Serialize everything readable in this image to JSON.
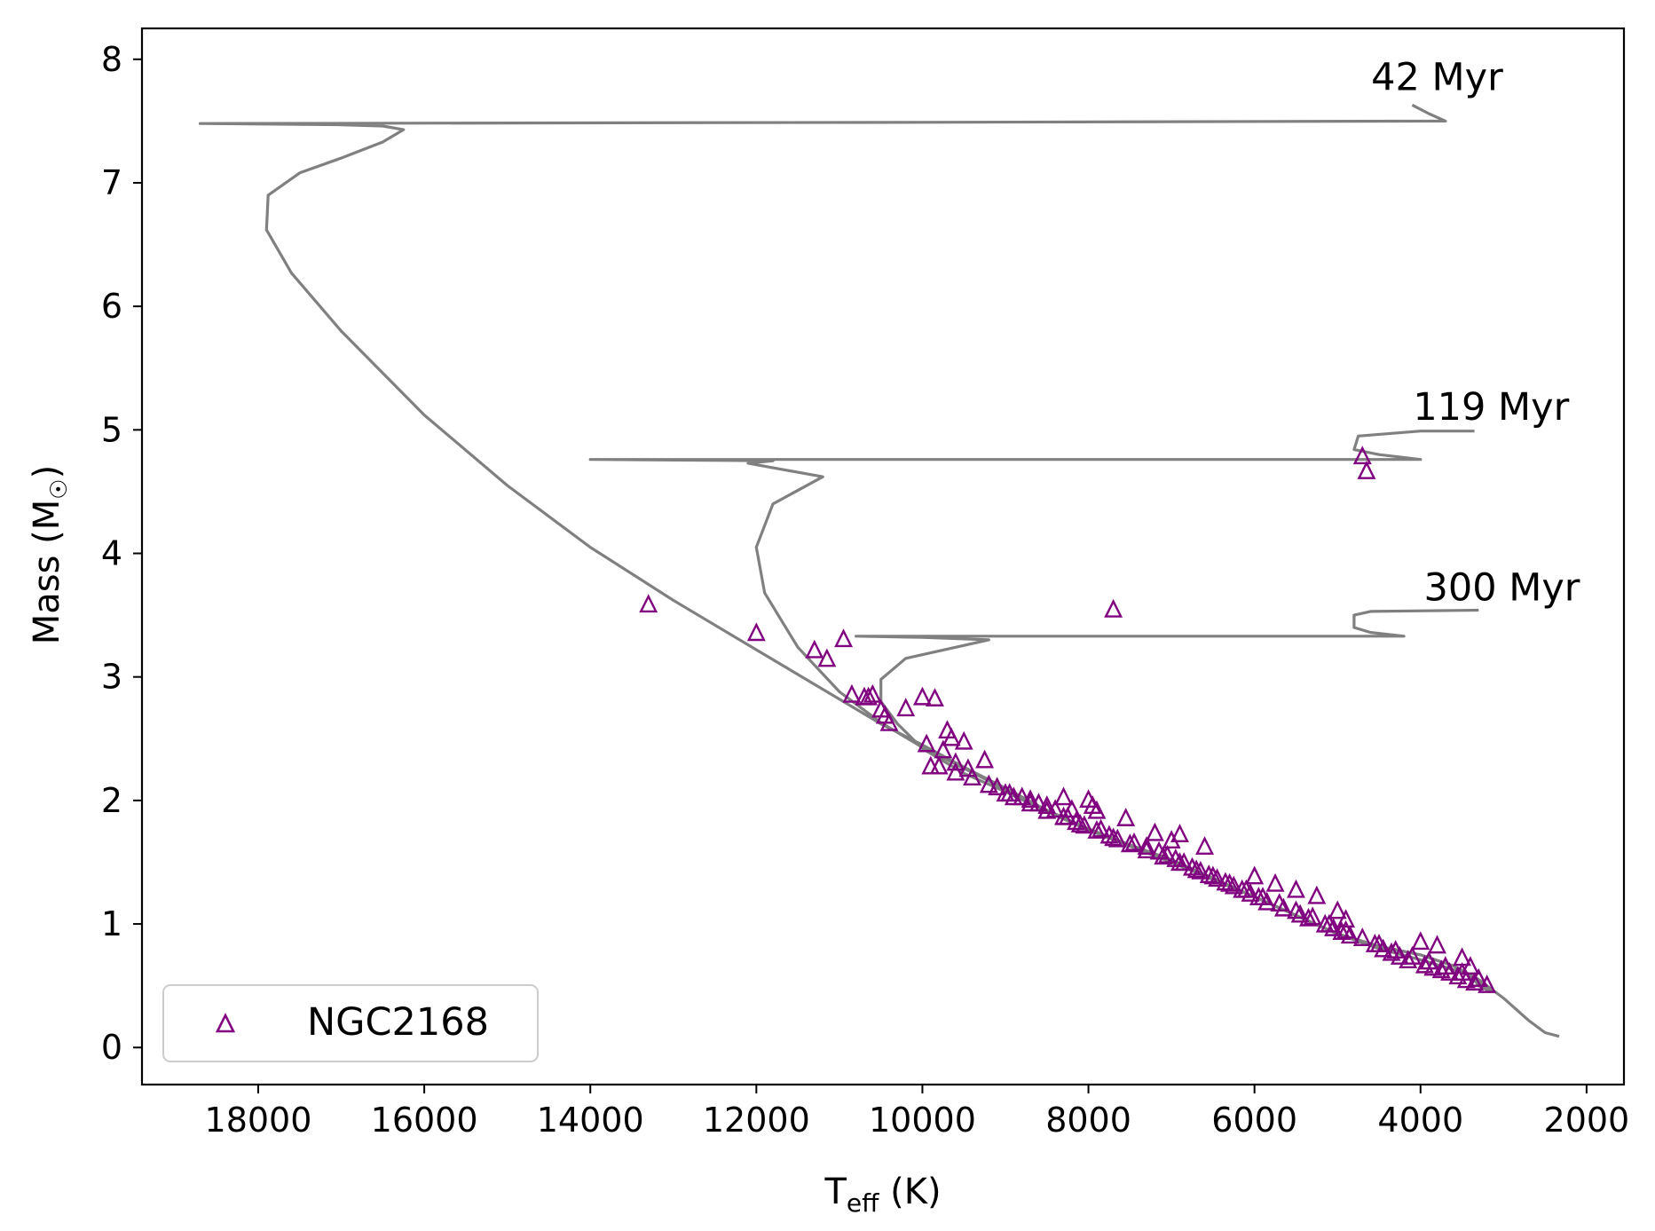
{
  "chart_data": {
    "type": "scatter",
    "title": "",
    "xlabel": {
      "main": "T",
      "sub": "eff",
      "rest": " (K)"
    },
    "ylabel": {
      "main": "Mass (M",
      "sub": "☉",
      "rest": ")"
    },
    "x_axis": {
      "range": [
        19400,
        1550
      ],
      "inverted": true,
      "ticks": [
        18000,
        16000,
        14000,
        12000,
        10000,
        8000,
        6000,
        4000,
        2000
      ],
      "tick_labels": [
        "18000",
        "16000",
        "14000",
        "12000",
        "10000",
        "8000",
        "6000",
        "4000",
        "2000"
      ]
    },
    "y_axis": {
      "range": [
        -0.3,
        8.25
      ],
      "ticks": [
        0,
        1,
        2,
        3,
        4,
        5,
        6,
        7,
        8
      ],
      "tick_labels": [
        "0",
        "1",
        "2",
        "3",
        "4",
        "5",
        "6",
        "7",
        "8"
      ]
    },
    "grid": false,
    "legend": {
      "position": "lower-left",
      "entries": [
        {
          "label": "NGC2168",
          "marker": "open-triangle",
          "color": "#800080"
        }
      ]
    },
    "isochrones": [
      {
        "label": "42 Myr",
        "color": "#808080",
        "points": [
          [
            2330,
            0.09
          ],
          [
            2500,
            0.12
          ],
          [
            2700,
            0.22
          ],
          [
            3000,
            0.4
          ],
          [
            3300,
            0.55
          ],
          [
            3600,
            0.66
          ],
          [
            4000,
            0.75
          ],
          [
            4500,
            0.82
          ],
          [
            5000,
            0.92
          ],
          [
            5500,
            1.07
          ],
          [
            6000,
            1.22
          ],
          [
            6500,
            1.37
          ],
          [
            7000,
            1.52
          ],
          [
            7500,
            1.64
          ],
          [
            8000,
            1.77
          ],
          [
            8500,
            1.92
          ],
          [
            9000,
            2.1
          ],
          [
            9500,
            2.27
          ],
          [
            10000,
            2.45
          ],
          [
            10500,
            2.62
          ],
          [
            11000,
            2.82
          ],
          [
            12000,
            3.22
          ],
          [
            13000,
            3.62
          ],
          [
            14000,
            4.05
          ],
          [
            15000,
            4.55
          ],
          [
            16000,
            5.12
          ],
          [
            17000,
            5.8
          ],
          [
            17600,
            6.27
          ],
          [
            17900,
            6.62
          ],
          [
            17880,
            6.9
          ],
          [
            17500,
            7.08
          ],
          [
            17000,
            7.2
          ],
          [
            16500,
            7.33
          ],
          [
            16250,
            7.43
          ],
          [
            16500,
            7.46
          ],
          [
            17000,
            7.47
          ],
          [
            18700,
            7.48
          ],
          [
            10000,
            7.49
          ],
          [
            3700,
            7.5
          ],
          [
            3900,
            7.56
          ],
          [
            4100,
            7.63
          ]
        ],
        "label_pos": [
          3800,
          7.75
        ]
      },
      {
        "label": "119 Myr",
        "color": "#808080",
        "points": [
          [
            3150,
            0.47
          ],
          [
            3300,
            0.53
          ],
          [
            3600,
            0.66
          ],
          [
            4000,
            0.75
          ],
          [
            4500,
            0.82
          ],
          [
            5000,
            0.92
          ],
          [
            5500,
            1.07
          ],
          [
            6000,
            1.22
          ],
          [
            6500,
            1.37
          ],
          [
            7000,
            1.52
          ],
          [
            7500,
            1.64
          ],
          [
            8000,
            1.77
          ],
          [
            8500,
            1.92
          ],
          [
            9000,
            2.09
          ],
          [
            9500,
            2.26
          ],
          [
            10000,
            2.43
          ],
          [
            10500,
            2.63
          ],
          [
            11000,
            2.88
          ],
          [
            11500,
            3.24
          ],
          [
            11900,
            3.68
          ],
          [
            12000,
            4.05
          ],
          [
            11800,
            4.4
          ],
          [
            11200,
            4.62
          ],
          [
            12100,
            4.73
          ],
          [
            11800,
            4.75
          ],
          [
            14000,
            4.76
          ],
          [
            4000,
            4.76
          ],
          [
            4500,
            4.8
          ],
          [
            4800,
            4.84
          ],
          [
            4750,
            4.95
          ],
          [
            4000,
            4.99
          ],
          [
            3350,
            4.99
          ]
        ],
        "label_pos": [
          3150,
          5.08
        ]
      },
      {
        "label": "300 Myr",
        "color": "#808080",
        "points": [
          [
            3150,
            0.45
          ],
          [
            3300,
            0.5
          ],
          [
            3400,
            0.59
          ],
          [
            3700,
            0.65
          ],
          [
            4000,
            0.71
          ],
          [
            4500,
            0.8
          ],
          [
            5000,
            0.92
          ],
          [
            5500,
            1.07
          ],
          [
            6000,
            1.22
          ],
          [
            6500,
            1.36
          ],
          [
            7000,
            1.5
          ],
          [
            7500,
            1.63
          ],
          [
            8000,
            1.76
          ],
          [
            8500,
            1.91
          ],
          [
            9000,
            2.07
          ],
          [
            9500,
            2.22
          ],
          [
            10000,
            2.42
          ],
          [
            10300,
            2.62
          ],
          [
            10500,
            2.8
          ],
          [
            10500,
            2.98
          ],
          [
            10200,
            3.15
          ],
          [
            9200,
            3.3
          ],
          [
            10000,
            3.32
          ],
          [
            10800,
            3.33
          ],
          [
            4200,
            3.33
          ],
          [
            4600,
            3.36
          ],
          [
            4800,
            3.4
          ],
          [
            4800,
            3.5
          ],
          [
            4600,
            3.53
          ],
          [
            3300,
            3.54
          ]
        ],
        "label_pos": [
          3020,
          3.62
        ]
      }
    ],
    "series": [
      {
        "name": "NGC2168",
        "color": "#800080",
        "x": [
          13300,
          12000,
          11300,
          11150,
          10950,
          10850,
          10700,
          10650,
          10600,
          10500,
          10450,
          10400,
          10200,
          10000,
          9850,
          9750,
          9700,
          9650,
          9600,
          9500,
          9450,
          9250,
          9100,
          8950,
          8700,
          8500,
          8300,
          8200,
          8000,
          7950,
          7900,
          7700,
          7550,
          7200,
          7000,
          6900,
          6600,
          6000,
          5750,
          5500,
          5250,
          5000,
          4900,
          4700,
          4650,
          4000,
          3800,
          3500,
          3400,
          3300,
          3200,
          9900,
          9950,
          9800,
          9600,
          9400,
          9200,
          9000,
          8800,
          8600,
          8400,
          8250,
          8150,
          8050,
          7850,
          7750,
          7650,
          7450,
          7300,
          7150,
          7050,
          6950,
          6850,
          6750,
          6650,
          6550,
          6450,
          6350,
          6250,
          6150,
          6050,
          5950,
          5850,
          5650,
          5450,
          5350,
          5150,
          5050,
          4950,
          4850,
          4550,
          4450,
          4350,
          4250,
          4150,
          3950,
          3850,
          3750,
          3650,
          3550,
          3450,
          3350,
          8900,
          8700,
          8500,
          8300,
          8100,
          7900,
          7700,
          7500,
          7300,
          7100,
          6900,
          6700,
          6500,
          6300,
          6100,
          5900,
          5700,
          5500,
          5300,
          5100,
          4900,
          4700,
          4500,
          4300,
          4100,
          3900,
          3700,
          3500,
          3300
        ],
        "y": [
          3.58,
          3.35,
          3.21,
          3.14,
          3.3,
          2.85,
          2.83,
          2.83,
          2.85,
          2.73,
          2.68,
          2.62,
          2.74,
          2.83,
          2.82,
          2.4,
          2.56,
          2.5,
          2.3,
          2.47,
          2.25,
          2.32,
          2.1,
          2.05,
          2.0,
          1.95,
          2.02,
          1.92,
          2.0,
          1.95,
          1.91,
          3.54,
          1.85,
          1.73,
          1.67,
          1.72,
          1.62,
          1.38,
          1.32,
          1.27,
          1.22,
          1.1,
          1.03,
          4.78,
          4.66,
          0.85,
          0.82,
          0.72,
          0.65,
          0.55,
          0.5,
          2.27,
          2.45,
          2.27,
          2.22,
          2.18,
          2.12,
          2.05,
          2.02,
          1.97,
          1.92,
          1.86,
          1.82,
          1.79,
          1.76,
          1.71,
          1.68,
          1.65,
          1.62,
          1.58,
          1.55,
          1.52,
          1.49,
          1.45,
          1.42,
          1.39,
          1.36,
          1.33,
          1.3,
          1.27,
          1.24,
          1.21,
          1.17,
          1.12,
          1.07,
          1.04,
          0.99,
          0.96,
          0.93,
          0.9,
          0.83,
          0.79,
          0.76,
          0.73,
          0.7,
          0.66,
          0.64,
          0.62,
          0.6,
          0.57,
          0.54,
          0.52,
          2.02,
          1.97,
          1.91,
          1.86,
          1.8,
          1.75,
          1.69,
          1.64,
          1.59,
          1.54,
          1.49,
          1.43,
          1.38,
          1.32,
          1.27,
          1.21,
          1.16,
          1.1,
          1.05,
          0.99,
          0.94,
          0.88,
          0.83,
          0.78,
          0.73,
          0.69,
          0.65,
          0.6,
          0.55
        ]
      }
    ],
    "points_legend": "annotations 42 Myr, 119 Myr, 300 Myr label the isochrones"
  }
}
